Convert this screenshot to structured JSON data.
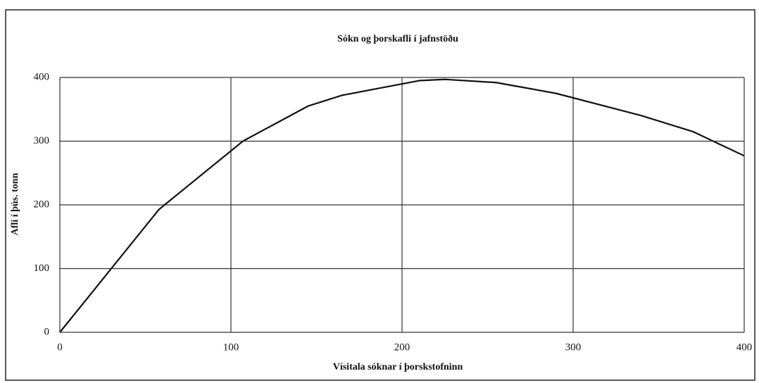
{
  "chart_data": {
    "type": "line",
    "title": "Sókn og þorskafli í jafnstöðu",
    "x_label": "Vísitala sóknar í þorskstofninn",
    "y_label": "Afli í þús. tonn",
    "series": [
      {
        "color": "#111111",
        "x": [
          0,
          58,
          107,
          145,
          165,
          210,
          225,
          255,
          290,
          340,
          370,
          400
        ],
        "values": [
          0,
          193,
          300,
          355,
          372,
          395,
          397,
          392,
          375,
          340,
          315,
          277
        ]
      }
    ],
    "xlim": [
      0,
      400
    ],
    "xticks": [
      0,
      100,
      200,
      300,
      400
    ],
    "ylim": [
      0,
      400
    ],
    "yticks": [
      0,
      100,
      200,
      300,
      400
    ],
    "grid": true
  }
}
